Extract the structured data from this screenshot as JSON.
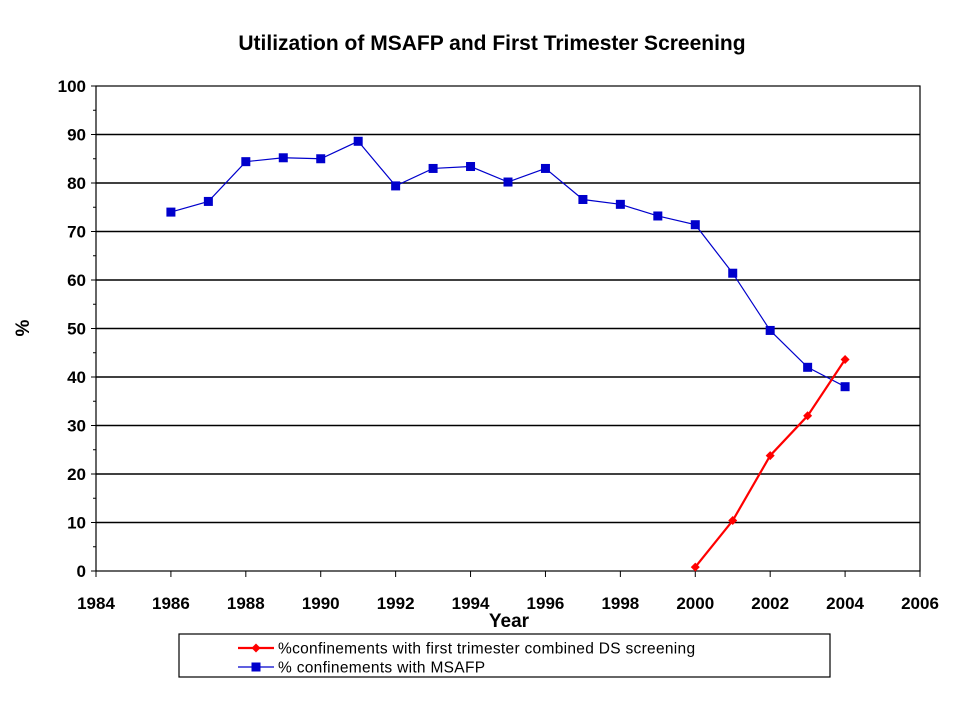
{
  "chart_data": {
    "type": "line",
    "title": "Utilization of MSAFP and First Trimester Screening",
    "xlabel": "Year",
    "ylabel": "%",
    "xlim": [
      1984,
      2006
    ],
    "ylim": [
      0,
      100
    ],
    "x_ticks": [
      1984,
      1986,
      1988,
      1990,
      1992,
      1994,
      1996,
      1998,
      2000,
      2002,
      2004,
      2006
    ],
    "y_ticks": [
      0,
      10,
      20,
      30,
      40,
      50,
      60,
      70,
      80,
      90,
      100
    ],
    "grid": "horizontal",
    "legend_position": "bottom",
    "series": [
      {
        "name": "%confinements with first trimester combined DS screening",
        "color": "#ff0000",
        "marker": "diamond",
        "x": [
          2000,
          2001,
          2002,
          2003,
          2004
        ],
        "y": [
          0.8,
          10.4,
          23.8,
          32.0,
          43.6
        ]
      },
      {
        "name": "% confinements with MSAFP",
        "color": "#0000cc",
        "marker": "square",
        "x": [
          1986,
          1987,
          1988,
          1989,
          1990,
          1991,
          1992,
          1993,
          1994,
          1995,
          1996,
          1997,
          1998,
          1999,
          2000,
          2001,
          2002,
          2003,
          2004
        ],
        "y": [
          74.0,
          76.2,
          84.4,
          85.2,
          85.0,
          88.6,
          79.4,
          83.0,
          83.4,
          80.2,
          83.0,
          76.6,
          75.6,
          73.2,
          71.4,
          61.4,
          49.6,
          42.0,
          38.0
        ]
      }
    ]
  }
}
